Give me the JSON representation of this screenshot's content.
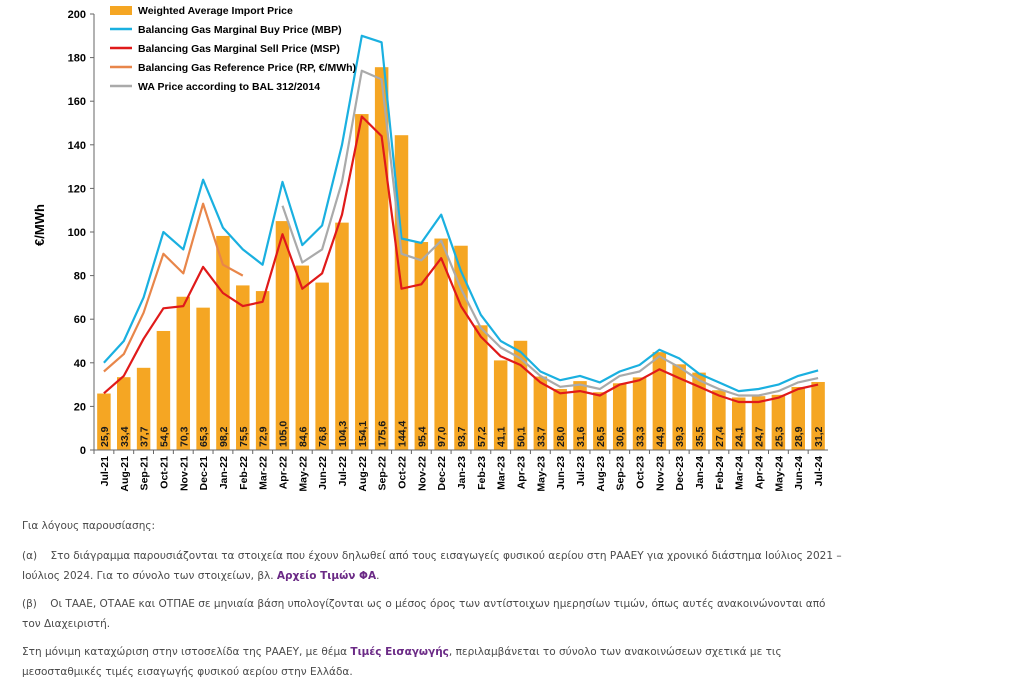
{
  "chart_data": {
    "type": "bar",
    "ylabel": "€/MWh",
    "ylim": [
      0,
      200
    ],
    "yticks": [
      0,
      20,
      40,
      60,
      80,
      100,
      120,
      140,
      160,
      180,
      200
    ],
    "grid": false,
    "legend_position": "top-left",
    "categories": [
      "Jul-21",
      "Aug-21",
      "Sep-21",
      "Oct-21",
      "Nov-21",
      "Dec-21",
      "Jan-22",
      "Feb-22",
      "Mar-22",
      "Apr-22",
      "May-22",
      "Jun-22",
      "Jul-22",
      "Aug-22",
      "Sep-22",
      "Oct-22",
      "Nov-22",
      "Dec-22",
      "Jan-23",
      "Feb-23",
      "Mar-23",
      "Apr-23",
      "May-23",
      "Jun-23",
      "Jul-23",
      "Aug-23",
      "Sep-23",
      "Oct-23",
      "Nov-23",
      "Dec-23",
      "Jan-24",
      "Feb-24",
      "Mar-24",
      "Apr-24",
      "May-24",
      "Jun-24",
      "Jul-24"
    ],
    "bar_series": {
      "name": "Weighted Average Import Price",
      "color": "#f5a623",
      "values": [
        25.9,
        33.4,
        37.7,
        54.6,
        70.3,
        65.3,
        98.2,
        75.5,
        72.9,
        105.0,
        84.6,
        76.8,
        104.3,
        154.1,
        175.6,
        144.4,
        95.4,
        97.0,
        93.7,
        57.2,
        41.1,
        50.1,
        33.7,
        28.0,
        31.6,
        26.5,
        30.6,
        33.3,
        44.9,
        39.3,
        35.5,
        27.4,
        24.1,
        24.7,
        25.3,
        28.9,
        31.2
      ],
      "labels": [
        "25,9",
        "33,4",
        "37,7",
        "54,6",
        "70,3",
        "65,3",
        "98,2",
        "75,5",
        "72,9",
        "105,0",
        "84,6",
        "76,8",
        "104,3",
        "154,1",
        "175,6",
        "144,4",
        "95,4",
        "97,0",
        "93,7",
        "57,2",
        "41,1",
        "50,1",
        "33,7",
        "28,0",
        "31,6",
        "26,5",
        "30,6",
        "33,3",
        "44,9",
        "39,3",
        "35,5",
        "27,4",
        "24,1",
        "24,7",
        "25,3",
        "28,9",
        "31,2"
      ]
    },
    "line_series": [
      {
        "name": "Balancing Gas Marginal Buy Price  (MBP)",
        "color": "#1ab0e0",
        "values": [
          40,
          50,
          70,
          100,
          92,
          124,
          102,
          92,
          85,
          123,
          94,
          103,
          140,
          190,
          187,
          97,
          95,
          108,
          82,
          62,
          50,
          45,
          36,
          32,
          34,
          31,
          36,
          39,
          46,
          42,
          35,
          31,
          27,
          28,
          30,
          34,
          36.5
        ]
      },
      {
        "name": "Balancing Gas Marginal Sell Price (MSP)",
        "color": "#e01a1a",
        "values": [
          26,
          34,
          51,
          65,
          66,
          84,
          72,
          66,
          68,
          99,
          74,
          81,
          108,
          153,
          144,
          74,
          76,
          88,
          66,
          52,
          43,
          39,
          31,
          26,
          27,
          25,
          30,
          32,
          37,
          33,
          29,
          25,
          22,
          22,
          24,
          28,
          30
        ]
      },
      {
        "name": "Balancing Gas Reference Price (RP, €/MWh)",
        "color": "#e8864a",
        "values": [
          36,
          44,
          63,
          90,
          81,
          113,
          85,
          80,
          null,
          null,
          null,
          null,
          null,
          null,
          null,
          null,
          null,
          null,
          null,
          null,
          null,
          null,
          null,
          null,
          null,
          null,
          null,
          null,
          null,
          null,
          null,
          null,
          null,
          null,
          null,
          null,
          null
        ]
      },
      {
        "name": "WA Price according to BAL 312/2014",
        "color": "#aaaaaa",
        "values": [
          null,
          null,
          null,
          null,
          null,
          null,
          null,
          null,
          null,
          112,
          86,
          92,
          123,
          174,
          170,
          90,
          87,
          96,
          74,
          56,
          47,
          42,
          34,
          29,
          30,
          28,
          34,
          36,
          43,
          38,
          32,
          28,
          25,
          25,
          27,
          31,
          33
        ]
      }
    ]
  },
  "paragraphs": {
    "intro": "Για λόγους παρουσίασης:",
    "a_marker": "(α)",
    "a_text": "Στο διάγραμμα παρουσιάζονται τα στοιχεία που έχουν δηλωθεί από τους εισαγωγείς φυσικού αερίου στη ΡΑΑΕΥ για χρονικό διάστημα Ιούλιος 2021 – Ιούλιος 2024. Για το σύνολο των στοιχείων, βλ. ",
    "a_link": "Αρχείο Τιμών ΦΑ",
    "a_end": ".",
    "b_marker": "(β)",
    "b_text": "Οι ΤΑΑΕ, ΟΤΑΑΕ και ΟΤΠΑΕ σε μηνιαία βάση υπολογίζονται ως ο μέσος όρος των αντίστοιχων ημερησίων τιμών, όπως αυτές ανακοινώνονται από τον Διαχειριστή.",
    "c_text_1": "Στη μόνιμη καταχώριση στην ιστοσελίδα της ΡΑΑΕΥ, με θέμα ",
    "c_link": "Τιμές Εισαγωγής",
    "c_text_2": ", περιλαμβάνεται το σύνολο των ανακοινώσεων σχετικά με τις μεσοσταθμικές τιμές εισαγωγής φυσικού αερίου στην Ελλάδα."
  }
}
